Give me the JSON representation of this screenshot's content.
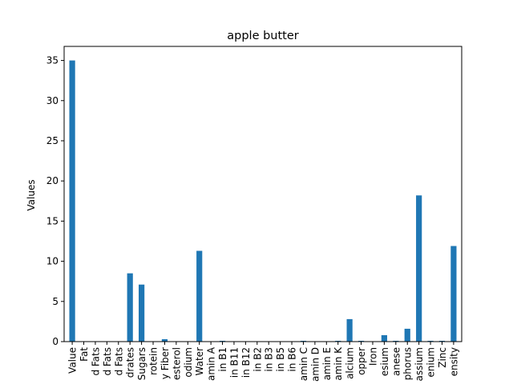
{
  "chart_data": {
    "type": "bar",
    "title": "apple butter",
    "xlabel": "",
    "ylabel": "Values",
    "ylim": [
      0,
      36.75
    ],
    "yticks": [
      0,
      5,
      10,
      15,
      20,
      25,
      30,
      35
    ],
    "grid": false,
    "legend": false,
    "bar_color": "#1f77b4",
    "categories": [
      "Value",
      "Fat",
      "d Fats",
      "d Fats",
      "d Fats",
      "drates",
      "Sugars",
      "rotein",
      "y Fiber",
      "esterol",
      "odium",
      "Water",
      "amin A",
      "in B1",
      "in B11",
      "in B12",
      "in B2",
      "in B3",
      "in B5",
      "in B6",
      "amin C",
      "amin D",
      "amin E",
      "amin K",
      "alcium",
      "opper",
      "Iron",
      "esium",
      "anese",
      "phorus",
      "assium",
      "enium",
      "Zinc",
      "ensity"
    ],
    "values": [
      35.0,
      0.0,
      0.0,
      0.0,
      0.0,
      8.5,
      7.1,
      0.05,
      0.3,
      0.0,
      0.0,
      11.3,
      0.0,
      0.1,
      0.0,
      0.0,
      0.0,
      0.05,
      0.0,
      0.0,
      0.1,
      0.0,
      0.0,
      0.1,
      2.8,
      0.1,
      0.0,
      0.8,
      0.1,
      1.6,
      18.2,
      0.1,
      0.1,
      11.9
    ]
  }
}
